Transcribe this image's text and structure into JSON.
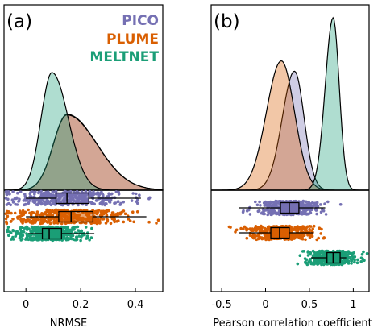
{
  "colors": {
    "pico": "#7570b3",
    "plume": "#d95f02",
    "meltnet": "#1b9e77"
  },
  "legend": {
    "pico": "PICO",
    "plume": "PLUME",
    "meltnet": "MELTNET"
  },
  "chart_data": [
    {
      "panel_label": "(a)",
      "type": "raincloud",
      "xlabel": "NRMSE",
      "xlim": [
        -0.08,
        0.5
      ],
      "xticks": [
        0,
        0.2,
        0.4
      ],
      "legend_position": "top-right",
      "series": [
        {
          "name": "PICO",
          "density": {
            "mode": 0.15,
            "sd_left": 0.05,
            "sd_right": 0.11,
            "peak_rel": 0.645
          },
          "box": {
            "whisker_low": 0.0,
            "q1": 0.11,
            "median": 0.15,
            "q3": 0.23,
            "whisker_high": 0.42
          }
        },
        {
          "name": "PLUME",
          "density": {
            "mode": 0.15,
            "sd_left": 0.05,
            "sd_right": 0.11,
            "peak_rel": 0.64
          },
          "box": {
            "whisker_low": 0.0,
            "q1": 0.12,
            "median": 0.165,
            "q3": 0.245,
            "whisker_high": 0.44
          }
        },
        {
          "name": "MELTNET",
          "density": {
            "mode": 0.095,
            "sd_left": 0.04,
            "sd_right": 0.06,
            "peak_rel": 1.0
          },
          "box": {
            "whisker_low": 0.01,
            "q1": 0.06,
            "median": 0.085,
            "q3": 0.13,
            "whisker_high": 0.25
          }
        }
      ]
    },
    {
      "panel_label": "(b)",
      "type": "raincloud",
      "xlabel": "Pearson correlation coefficient",
      "xlim": [
        -0.62,
        1.18
      ],
      "xticks": [
        -0.5,
        0,
        0.5,
        1
      ],
      "series": [
        {
          "name": "PICO",
          "density": {
            "mode": 0.33,
            "sd_left": 0.14,
            "sd_right": 0.11,
            "peak_rel": 0.69
          },
          "box": {
            "whisker_low": -0.3,
            "q1": 0.17,
            "median": 0.27,
            "q3": 0.38,
            "whisker_high": 0.68
          }
        },
        {
          "name": "PLUME",
          "density": {
            "mode": 0.18,
            "sd_left": 0.17,
            "sd_right": 0.15,
            "peak_rel": 0.75
          },
          "box": {
            "whisker_low": -0.3,
            "q1": 0.06,
            "median": 0.16,
            "q3": 0.27,
            "whisker_high": 0.55
          }
        },
        {
          "name": "MELTNET",
          "density": {
            "mode": 0.77,
            "sd_left": 0.09,
            "sd_right": 0.07,
            "peak_rel": 1.0
          },
          "box": {
            "whisker_low": 0.52,
            "q1": 0.7,
            "median": 0.77,
            "q3": 0.85,
            "whisker_high": 0.92
          }
        }
      ]
    }
  ]
}
